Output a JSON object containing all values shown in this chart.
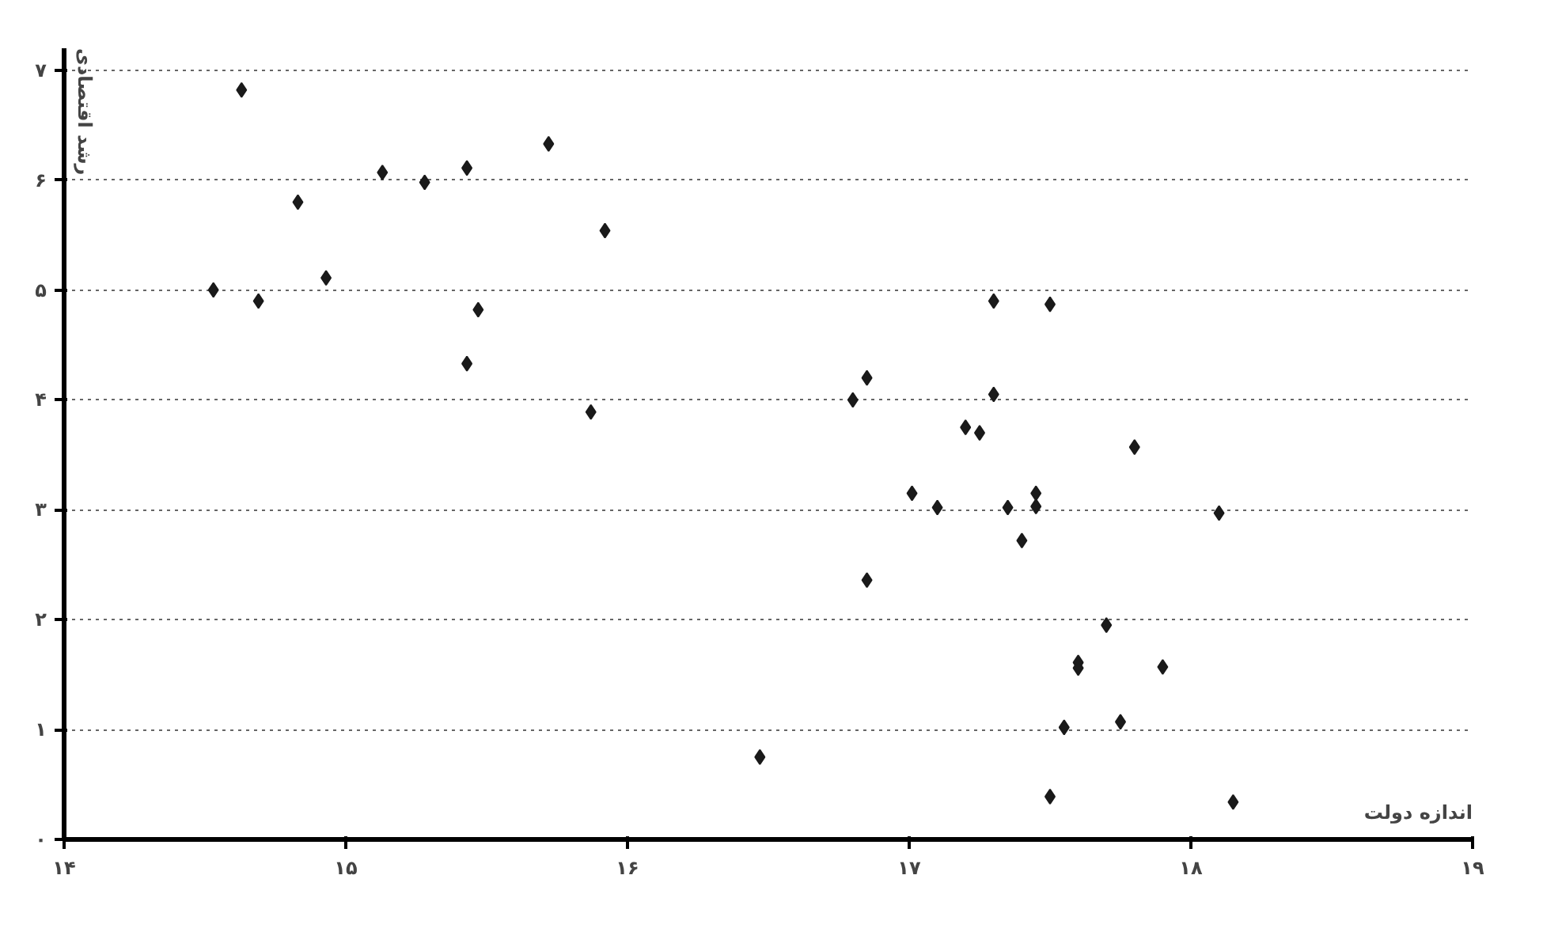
{
  "chart_data": {
    "type": "scatter",
    "xlabel": "اندازه دولت",
    "ylabel": "رشد اقتصادی",
    "color": "#1a1a1a",
    "marker": "diamond",
    "grid": "y",
    "xlim": [
      14,
      19
    ],
    "ylim": [
      0,
      7.2
    ],
    "xticks": [
      {
        "value": 14,
        "label": "۱۴"
      },
      {
        "value": 15,
        "label": "۱۵"
      },
      {
        "value": 16,
        "label": "۱۶"
      },
      {
        "value": 17,
        "label": "۱۷"
      },
      {
        "value": 18,
        "label": "۱۸"
      },
      {
        "value": 19,
        "label": "۱۹"
      }
    ],
    "yticks": [
      {
        "value": 0,
        "label": "۰"
      },
      {
        "value": 1,
        "label": "۱"
      },
      {
        "value": 2,
        "label": "۲"
      },
      {
        "value": 3,
        "label": "۳"
      },
      {
        "value": 4,
        "label": "۴"
      },
      {
        "value": 5,
        "label": "۵"
      },
      {
        "value": 6,
        "label": "۶"
      },
      {
        "value": 7,
        "label": "۷"
      }
    ],
    "x": [
      14.53,
      14.63,
      14.69,
      14.83,
      14.93,
      15.13,
      15.28,
      15.43,
      15.43,
      15.47,
      15.72,
      15.87,
      15.92,
      16.47,
      16.8,
      16.85,
      16.85,
      17.01,
      17.1,
      17.2,
      17.25,
      17.3,
      17.3,
      17.35,
      17.4,
      17.45,
      17.45,
      17.5,
      17.5,
      17.55,
      17.6,
      17.6,
      17.7,
      17.75,
      17.8,
      17.9,
      18.1,
      18.15
    ],
    "values": [
      5.0,
      6.82,
      4.9,
      5.8,
      5.11,
      6.07,
      5.98,
      6.11,
      4.33,
      4.82,
      6.33,
      3.89,
      5.54,
      0.75,
      4.0,
      4.2,
      2.36,
      3.15,
      3.02,
      3.75,
      3.7,
      4.9,
      4.05,
      3.02,
      2.72,
      3.15,
      3.03,
      4.87,
      0.39,
      1.02,
      1.61,
      1.56,
      1.95,
      1.07,
      3.57,
      1.57,
      2.97,
      0.34
    ]
  }
}
